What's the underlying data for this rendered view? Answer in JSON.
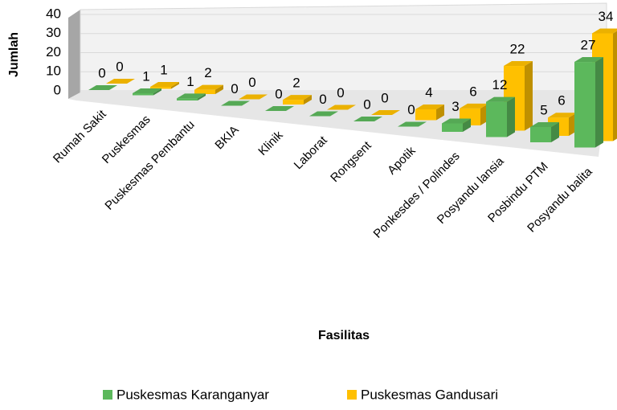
{
  "chart_data": {
    "type": "bar3d",
    "x_label": "Fasilitas",
    "y_label": "Jumlah",
    "categories": [
      "Rumah Sakit",
      "Puskesmas",
      "Puskesmas Pembantu",
      "BKIA",
      "Klinik",
      "Laborat",
      "Rongsent",
      "Apotik",
      "Ponkesdes / Polindes",
      "Posyandu lansia",
      "Posbindu PTM",
      "Posyandu balita"
    ],
    "series": [
      {
        "name": "Puskesmas Karanganyar",
        "color": "#5cb85c",
        "values": [
          0,
          1,
          1,
          0,
          0,
          0,
          0,
          0,
          3,
          12,
          5,
          27
        ]
      },
      {
        "name": "Puskesmas Gandusari",
        "color": "#ffc000",
        "values": [
          0,
          1,
          2,
          0,
          2,
          0,
          0,
          4,
          6,
          22,
          6,
          34
        ]
      }
    ],
    "ylim": [
      0,
      40
    ],
    "yticks": [
      0,
      10,
      20,
      30,
      40
    ],
    "grid": true,
    "legend": "bottom"
  }
}
